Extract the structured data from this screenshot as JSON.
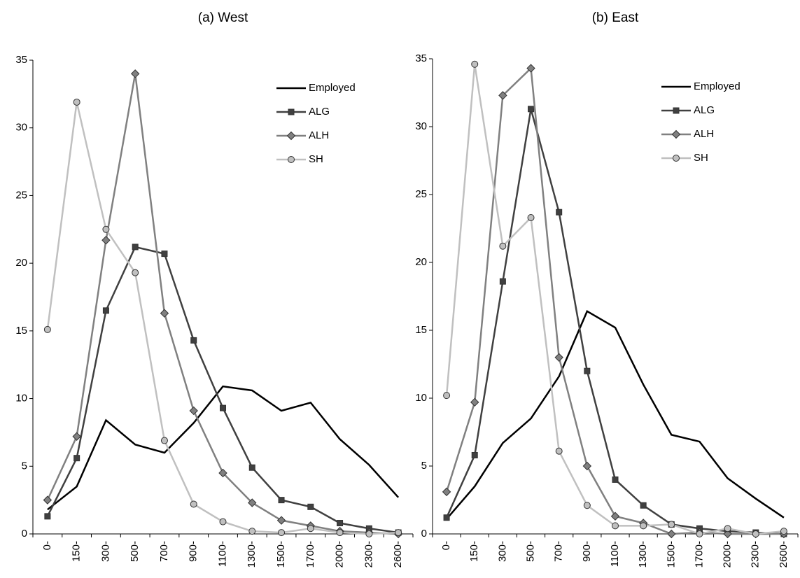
{
  "chart_data": [
    {
      "type": "line",
      "title": "(a) West",
      "categories": [
        "0-",
        "150-",
        "300-",
        "500-",
        "700-",
        "900-",
        "1100-",
        "1300-",
        "1500-",
        "1700-",
        "2000-",
        "2300-",
        "2600-"
      ],
      "ylim": [
        0,
        35
      ],
      "yticks": [
        0,
        5,
        10,
        15,
        20,
        25,
        30,
        35
      ],
      "legend": "upper right",
      "series": [
        {
          "name": "Employed",
          "color": "#000000",
          "marker": "none",
          "values": [
            1.8,
            3.5,
            8.4,
            6.6,
            6.0,
            8.2,
            10.9,
            10.6,
            9.1,
            9.7,
            7.0,
            5.1,
            2.7
          ]
        },
        {
          "name": "ALG",
          "color": "#404040",
          "marker": "square",
          "values": [
            1.3,
            5.6,
            16.5,
            21.2,
            20.7,
            14.3,
            9.3,
            4.9,
            2.5,
            2.0,
            0.8,
            0.4,
            0.1
          ]
        },
        {
          "name": "ALH",
          "color": "#808080",
          "marker": "diamond",
          "values": [
            2.5,
            7.2,
            21.7,
            34.0,
            16.3,
            9.1,
            4.5,
            2.3,
            1.0,
            0.6,
            0.2,
            0.1,
            0.0
          ]
        },
        {
          "name": "SH",
          "color": "#c0c0c0",
          "marker": "circle",
          "values": [
            15.1,
            31.9,
            22.5,
            19.3,
            6.9,
            2.2,
            0.9,
            0.2,
            0.1,
            0.4,
            0.1,
            0.0,
            0.1
          ]
        }
      ]
    },
    {
      "type": "line",
      "title": "(b) East",
      "categories": [
        "0-",
        "150-",
        "300-",
        "500-",
        "700-",
        "900-",
        "1100-",
        "1300-",
        "1500-",
        "1700-",
        "2000-",
        "2300-",
        "2600-"
      ],
      "ylim": [
        0,
        35
      ],
      "yticks": [
        0,
        5,
        10,
        15,
        20,
        25,
        30,
        35
      ],
      "legend": "upper right",
      "series": [
        {
          "name": "Employed",
          "color": "#000000",
          "marker": "none",
          "values": [
            1.1,
            3.5,
            6.7,
            8.5,
            11.6,
            16.4,
            15.2,
            11.0,
            7.3,
            6.8,
            4.1,
            2.6,
            1.2
          ]
        },
        {
          "name": "ALG",
          "color": "#404040",
          "marker": "square",
          "values": [
            1.2,
            5.8,
            18.6,
            31.3,
            23.7,
            12.0,
            4.0,
            2.1,
            0.7,
            0.4,
            0.2,
            0.1,
            0.0
          ]
        },
        {
          "name": "ALH",
          "color": "#808080",
          "marker": "diamond",
          "values": [
            3.1,
            9.7,
            32.3,
            34.3,
            13.0,
            5.0,
            1.3,
            0.8,
            0.0,
            0.1,
            0.0,
            0.0,
            0.0
          ]
        },
        {
          "name": "SH",
          "color": "#c0c0c0",
          "marker": "circle",
          "values": [
            10.2,
            34.6,
            21.2,
            23.3,
            6.1,
            2.1,
            0.6,
            0.6,
            0.7,
            0.0,
            0.4,
            0.0,
            0.2
          ]
        }
      ]
    }
  ]
}
